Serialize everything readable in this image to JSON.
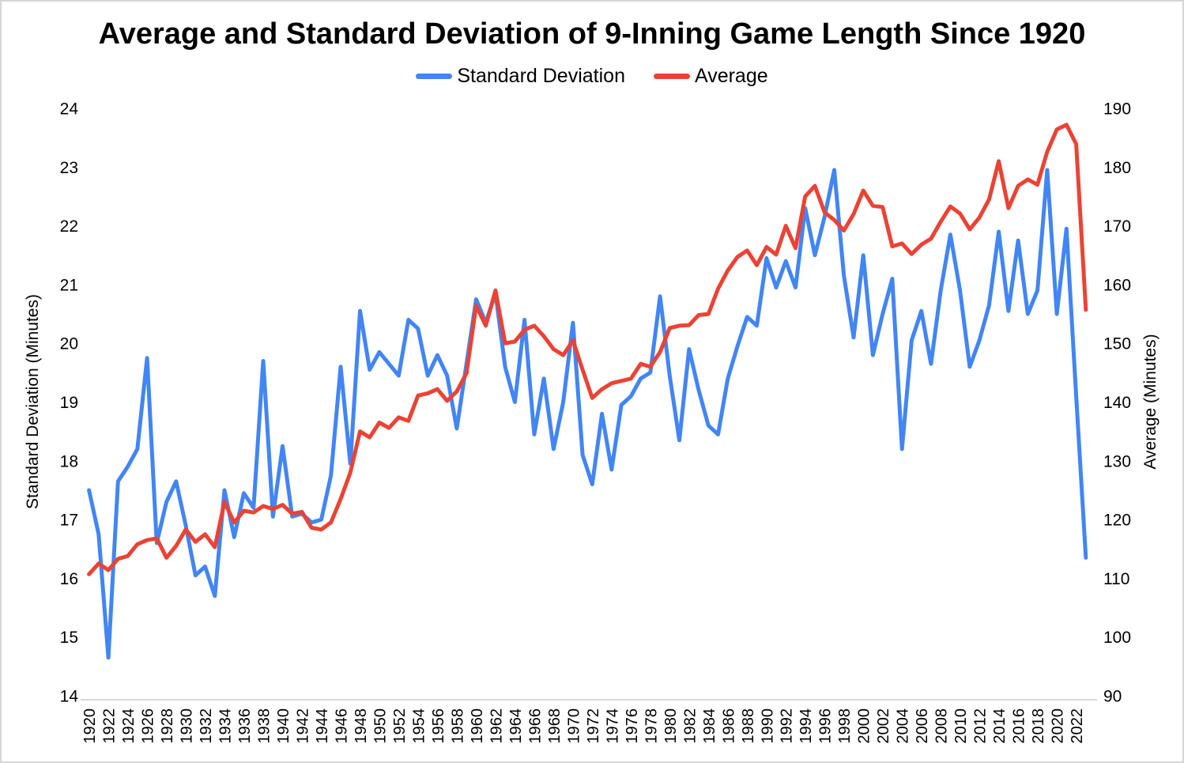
{
  "title": "Average and Standard Deviation of 9-Inning Game Length Since 1920",
  "legend": [
    {
      "label": "Standard Deviation",
      "color": "#4285F4"
    },
    {
      "label": "Average",
      "color": "#EA4335"
    }
  ],
  "left_axis": {
    "title": "Standard Deviation (Minutes)",
    "ticks": [
      24,
      23,
      22,
      21,
      20,
      19,
      18,
      17,
      16,
      15,
      14
    ]
  },
  "right_axis": {
    "title": "Average (Minutes)",
    "ticks": [
      190,
      180,
      170,
      160,
      150,
      140,
      130,
      120,
      110,
      100,
      90
    ]
  },
  "x_axis": {
    "tick_years": [
      "1920",
      "1922",
      "1924",
      "1926",
      "1928",
      "1930",
      "1932",
      "1934",
      "1936",
      "1938",
      "1940",
      "1942",
      "1944",
      "1946",
      "1948",
      "1950",
      "1952",
      "1954",
      "1956",
      "1958",
      "1960",
      "1962",
      "1964",
      "1966",
      "1968",
      "1970",
      "1972",
      "1974",
      "1976",
      "1978",
      "1980",
      "1982",
      "1984",
      "1986",
      "1988",
      "1990",
      "1992",
      "1994",
      "1996",
      "1998",
      "2000",
      "2002",
      "2004",
      "2006",
      "2008",
      "2010",
      "2012",
      "2014",
      "2016",
      "2018",
      "2020",
      "2022"
    ]
  },
  "chart_data": {
    "type": "line",
    "title": "Average and Standard Deviation of 9-Inning Game Length Since 1920",
    "grid": false,
    "legend_position": "top",
    "x_start_year": 1920,
    "x_end_year": 2023,
    "left_ylim": [
      14,
      24
    ],
    "right_ylim": [
      90,
      190
    ],
    "x": [
      1920,
      1921,
      1922,
      1923,
      1924,
      1925,
      1926,
      1927,
      1928,
      1929,
      1930,
      1931,
      1932,
      1933,
      1934,
      1935,
      1936,
      1937,
      1938,
      1939,
      1940,
      1941,
      1942,
      1943,
      1944,
      1945,
      1946,
      1947,
      1948,
      1949,
      1950,
      1951,
      1952,
      1953,
      1954,
      1955,
      1956,
      1957,
      1958,
      1959,
      1960,
      1961,
      1962,
      1963,
      1964,
      1965,
      1966,
      1967,
      1968,
      1969,
      1970,
      1971,
      1972,
      1973,
      1974,
      1975,
      1976,
      1977,
      1978,
      1979,
      1980,
      1981,
      1982,
      1983,
      1984,
      1985,
      1986,
      1987,
      1988,
      1989,
      1990,
      1991,
      1992,
      1993,
      1994,
      1995,
      1996,
      1997,
      1998,
      1999,
      2000,
      2001,
      2002,
      2003,
      2004,
      2005,
      2006,
      2007,
      2008,
      2009,
      2010,
      2011,
      2012,
      2013,
      2014,
      2015,
      2016,
      2017,
      2018,
      2019,
      2020,
      2021,
      2022,
      2023
    ],
    "series": [
      {
        "name": "Standard Deviation",
        "axis": "left",
        "color": "#4285F4",
        "values": [
          17.5,
          16.75,
          14.65,
          17.65,
          17.9,
          18.2,
          19.75,
          16.6,
          17.3,
          17.65,
          16.9,
          16.05,
          16.2,
          15.7,
          17.5,
          16.7,
          17.45,
          17.2,
          19.7,
          17.05,
          18.25,
          17.05,
          17.1,
          16.95,
          17.0,
          17.75,
          19.6,
          17.95,
          20.55,
          19.55,
          19.85,
          19.65,
          19.45,
          20.4,
          20.25,
          19.45,
          19.8,
          19.45,
          18.55,
          19.65,
          20.75,
          20.35,
          20.85,
          19.6,
          19.0,
          20.4,
          18.45,
          19.4,
          18.2,
          19.0,
          20.35,
          18.1,
          17.6,
          18.8,
          17.85,
          18.95,
          19.1,
          19.4,
          19.5,
          20.8,
          19.45,
          18.35,
          19.9,
          19.2,
          18.6,
          18.45,
          19.4,
          19.95,
          20.45,
          20.3,
          21.45,
          20.95,
          21.4,
          20.95,
          22.3,
          21.5,
          22.15,
          22.95,
          21.15,
          20.1,
          21.5,
          19.8,
          20.5,
          21.1,
          18.2,
          20.05,
          20.55,
          19.65,
          20.9,
          21.85,
          20.9,
          19.6,
          20.05,
          20.65,
          21.9,
          20.55,
          21.75,
          20.5,
          20.9,
          22.95,
          20.5,
          21.95,
          19.1,
          16.35
        ]
      },
      {
        "name": "Average",
        "axis": "right",
        "color": "#EA4335",
        "values": [
          110.7,
          112.5,
          111.4,
          113.3,
          113.8,
          115.8,
          116.5,
          116.8,
          113.5,
          115.5,
          118.3,
          116.2,
          117.5,
          115.3,
          123.0,
          119.5,
          121.5,
          121.2,
          122.3,
          121.8,
          122.5,
          121.0,
          121.3,
          118.6,
          118.3,
          119.5,
          123.5,
          128.0,
          135.0,
          134.0,
          136.5,
          135.6,
          137.4,
          136.8,
          141.1,
          141.5,
          142.2,
          140.2,
          141.8,
          144.9,
          156.4,
          153.0,
          159.0,
          150.0,
          150.3,
          152.3,
          153.0,
          151.2,
          149.0,
          148.0,
          150.5,
          145.5,
          140.7,
          142.2,
          143.2,
          143.6,
          144.0,
          146.5,
          146.0,
          148.5,
          152.6,
          153.0,
          153.1,
          154.8,
          155.0,
          159.3,
          162.4,
          164.7,
          165.8,
          163.3,
          166.4,
          165.1,
          170.0,
          166.2,
          175.0,
          176.8,
          172.3,
          171.0,
          169.2,
          172.0,
          176.0,
          173.4,
          173.2,
          166.5,
          167.0,
          165.2,
          166.8,
          167.8,
          170.7,
          173.3,
          172.1,
          169.4,
          171.4,
          174.5,
          181.0,
          173.0,
          176.8,
          177.9,
          177.0,
          182.6,
          186.4,
          187.2,
          183.9,
          155.7
        ]
      }
    ]
  }
}
